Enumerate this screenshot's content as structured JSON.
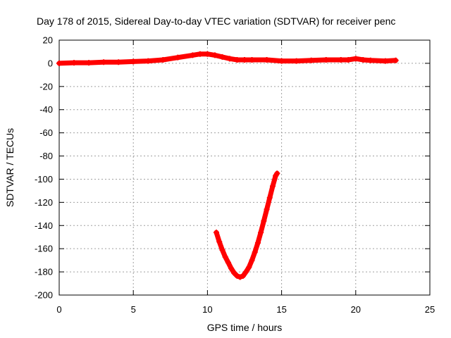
{
  "chart_data": {
    "type": "line",
    "title": "Day 178 of 2015, Sidereal Day-to-day VTEC variation (SDTVAR) for receiver penc",
    "xlabel": "GPS time / hours",
    "ylabel": "SDTVAR / TECUs",
    "xlim": [
      0,
      25
    ],
    "ylim": [
      -200,
      20
    ],
    "xticks": [
      0,
      5,
      10,
      15,
      20,
      25
    ],
    "xtick_labels": [
      "0",
      "5",
      "10",
      "15",
      "20",
      "25"
    ],
    "yticks": [
      20,
      0,
      -20,
      -40,
      -60,
      -80,
      -100,
      -120,
      -140,
      -160,
      -180,
      -200
    ],
    "ytick_labels": [
      "20",
      "0",
      "-20",
      "-40",
      "-60",
      "-80",
      "-100",
      "-120",
      "-140",
      "-160",
      "-180",
      "-200"
    ],
    "grid": true,
    "series": [
      {
        "name": "sdtvar-main",
        "color": "#ff0000",
        "x": [
          0,
          1,
          2,
          3,
          4,
          5,
          6,
          7,
          8,
          9,
          9.5,
          10,
          10.5,
          11,
          11.5,
          12,
          12.5,
          13,
          14,
          15,
          16,
          17,
          18,
          19,
          19.5,
          20,
          20.5,
          21,
          22,
          22.7
        ],
        "y": [
          0,
          0.5,
          0.5,
          1,
          1,
          1.5,
          2,
          3,
          5,
          7,
          8,
          8,
          7,
          5.5,
          4,
          3,
          3,
          3,
          3,
          2,
          2,
          2.5,
          3,
          3,
          3,
          4,
          3,
          2.5,
          2,
          2.5
        ]
      },
      {
        "name": "sdtvar-excursion",
        "color": "#ff0000",
        "x": [
          10.6,
          10.8,
          11.0,
          11.2,
          11.4,
          11.6,
          11.8,
          12.0,
          12.2,
          12.4,
          12.6,
          12.8,
          13.0,
          13.2,
          13.4,
          13.6,
          13.8,
          14.0,
          14.2,
          14.4,
          14.6,
          14.7
        ],
        "y": [
          -146,
          -154,
          -161,
          -167,
          -172,
          -177,
          -181,
          -183.5,
          -184.5,
          -183.5,
          -180,
          -176,
          -170,
          -163,
          -155,
          -146,
          -136,
          -126,
          -116,
          -106,
          -97,
          -95
        ]
      }
    ]
  }
}
